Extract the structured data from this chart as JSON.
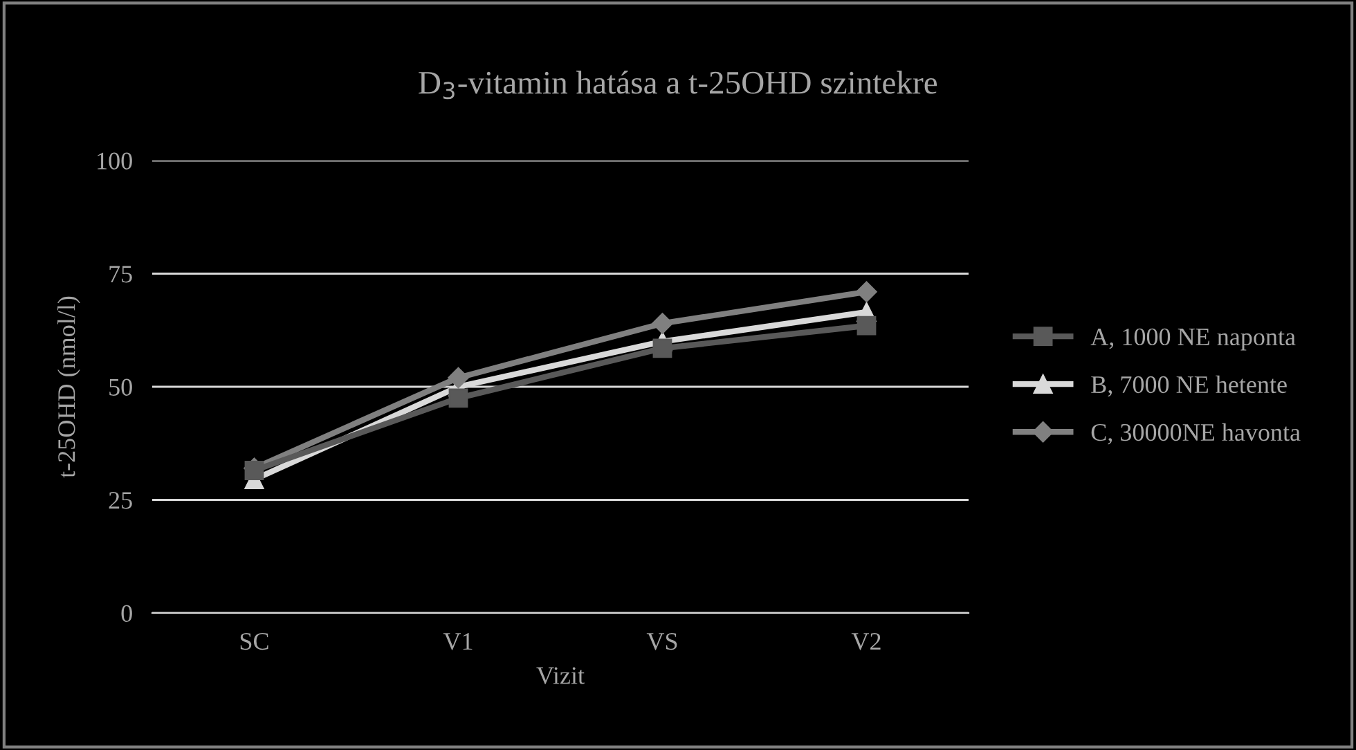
{
  "chart_data": {
    "type": "line",
    "title": "D$_{3}$-vitamin hatása a t-25OHD szintekre",
    "xlabel": "Vizit",
    "ylabel": "t-25OHD (nmol/l)",
    "categories": [
      "SC",
      "V1",
      "VS",
      "V2"
    ],
    "series": [
      {
        "name": "A, 1000 NE naponta",
        "color": "#595959",
        "marker": "square",
        "values": [
          31.5,
          47.5,
          58.5,
          63.5
        ]
      },
      {
        "name": "B, 7000 NE hetente",
        "color": "#d9d9d9",
        "marker": "triangle",
        "values": [
          29.5,
          50,
          60,
          66.5
        ]
      },
      {
        "name": "C, 30000NE havonta",
        "color": "#808080",
        "marker": "diamond",
        "values": [
          32,
          52,
          64,
          71
        ]
      }
    ],
    "ylim": [
      0,
      100
    ],
    "yticks": [
      0,
      25,
      50,
      75,
      100
    ],
    "grid": "y",
    "legend": "right",
    "line_style": "solid"
  }
}
